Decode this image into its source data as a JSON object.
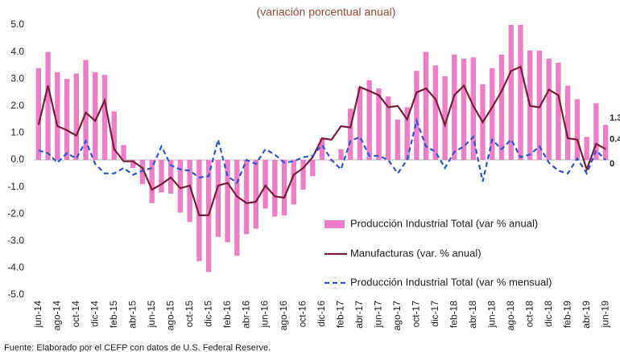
{
  "chart_data": {
    "type": "bar",
    "title": "(variación porcentual anual)",
    "source": "Fuente: Elaborado por el CEFP con datos de U.S. Federal Reserve.",
    "categories": [
      "jun-14",
      null,
      "ago-14",
      null,
      "oct-14",
      null,
      "dic-14",
      null,
      "feb-15",
      null,
      "abr-15",
      null,
      "jun-15",
      null,
      "ago-15",
      null,
      "oct-15",
      null,
      "dic-15",
      null,
      "feb-16",
      null,
      "abr-16",
      null,
      "jun-16",
      null,
      "ago-16",
      null,
      "oct-16",
      null,
      "dic-16",
      null,
      "feb-17",
      null,
      "abr-17",
      null,
      "jun-17",
      null,
      "ago-17",
      null,
      "oct-17",
      null,
      "dic-17",
      null,
      "feb-18",
      null,
      "abr-18",
      null,
      "jun-18",
      null,
      "ago-18",
      null,
      "oct-18",
      null,
      "dic-18",
      null,
      "feb-19",
      null,
      "abr-19",
      null,
      "jun-19"
    ],
    "series": [
      {
        "name": "Producción Industrial Total (var % anual)",
        "type": "bar",
        "color": "#ee7cc6",
        "values": [
          3.4,
          4.0,
          3.25,
          3.0,
          3.2,
          3.7,
          3.25,
          3.15,
          1.8,
          0.55,
          -0.3,
          -0.9,
          -1.6,
          -1.2,
          -1.25,
          -1.95,
          -2.3,
          -3.75,
          -4.15,
          -2.85,
          -3.05,
          -3.55,
          -2.75,
          -2.55,
          -1.8,
          -2.1,
          -2.05,
          -1.65,
          -1.1,
          -0.6,
          0.8,
          -0.05,
          0.4,
          1.9,
          2.7,
          2.95,
          2.65,
          2.35,
          1.5,
          1.95,
          3.3,
          4.0,
          3.5,
          3.1,
          3.9,
          3.75,
          3.8,
          2.8,
          3.4,
          3.9,
          5.0,
          5.0,
          4.05,
          4.05,
          3.75,
          3.6,
          2.75,
          2.25,
          0.85,
          2.1,
          1.3
        ]
      },
      {
        "name": "Manufacturas (var. % anual)",
        "type": "line",
        "color": "#7a1d38",
        "dashed": false,
        "values": [
          1.3,
          2.75,
          1.25,
          1.1,
          0.9,
          1.75,
          1.45,
          2.2,
          0.4,
          -0.05,
          -0.05,
          -0.3,
          -1.1,
          -0.9,
          -0.65,
          -1.05,
          -0.95,
          -2.05,
          -2.05,
          -0.95,
          -0.85,
          -1.35,
          -1.6,
          -1.55,
          -0.95,
          -1.35,
          -1.4,
          -0.55,
          -0.3,
          0.1,
          0.8,
          0.75,
          1.25,
          1.2,
          2.7,
          2.55,
          2.4,
          1.95,
          2.0,
          1.5,
          2.5,
          2.65,
          2.25,
          1.3,
          2.4,
          2.75,
          2.0,
          1.4,
          1.95,
          2.55,
          3.3,
          3.45,
          2.0,
          1.95,
          2.6,
          2.4,
          0.8,
          0.75,
          -0.35,
          0.6,
          0.4
        ]
      },
      {
        "name": "Producción Industrial Total (var % mensual)",
        "type": "line",
        "color": "#2a56d8",
        "dashed": true,
        "values": [
          0.35,
          0.25,
          -0.1,
          0.25,
          0.05,
          0.7,
          -0.15,
          -0.5,
          -0.5,
          -0.3,
          -0.55,
          -0.4,
          -0.3,
          0.5,
          -0.2,
          -0.35,
          -0.4,
          -0.65,
          -0.6,
          0.75,
          -0.6,
          -0.85,
          0.0,
          -0.15,
          0.4,
          0.2,
          -0.1,
          -0.05,
          0.1,
          0.15,
          0.55,
          0.0,
          -0.35,
          0.7,
          0.85,
          0.15,
          0.15,
          0.0,
          -0.5,
          0.0,
          1.45,
          0.5,
          0.3,
          -0.3,
          0.3,
          0.5,
          0.85,
          -0.8,
          0.75,
          0.4,
          0.75,
          0.1,
          0.2,
          0.5,
          -0.1,
          -0.4,
          -0.5,
          0.05,
          -0.5,
          0.35,
          0.0
        ]
      }
    ],
    "ylim": [
      -5.0,
      5.0
    ],
    "yticks": [
      {
        "value": -5,
        "label": "-5.0"
      },
      {
        "value": -4,
        "label": "-4.0"
      },
      {
        "value": -3,
        "label": "-3.0"
      },
      {
        "value": -2,
        "label": "-2.0"
      },
      {
        "value": -1,
        "label": "-1.0"
      },
      {
        "value": 0,
        "label": "0.0"
      },
      {
        "value": 1,
        "label": "1.0"
      },
      {
        "value": 2,
        "label": "2.0"
      },
      {
        "value": 3,
        "label": "3.0"
      },
      {
        "value": 4,
        "label": "4.0"
      },
      {
        "value": 5,
        "label": "5.0"
      }
    ],
    "grid": false,
    "legend": "lower right"
  }
}
